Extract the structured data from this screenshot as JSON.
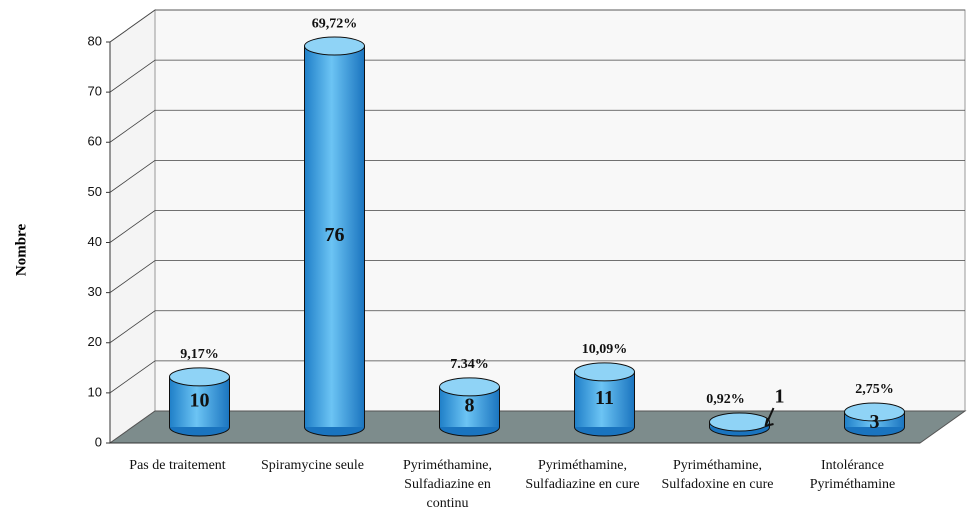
{
  "chart_data": {
    "type": "bar3d",
    "y_label": "Nombre",
    "categories": [
      "Pas de traitement",
      "Spiramycine seule",
      "Pyriméthamine, Sulfadiazine en continu",
      "Pyriméthamine, Sulfadiazine en cure",
      "Pyriméthamine, Sulfadoxine en cure",
      "Intolérance Pyriméthamine"
    ],
    "values": [
      10,
      76,
      8,
      11,
      1,
      3
    ],
    "percent_values": [
      9.17,
      69.72,
      7.34,
      10.09,
      0.92,
      2.75
    ],
    "percent_labels": [
      "9,17%",
      "69,72%",
      "7.34%",
      "10,09%",
      "0,92%",
      "2,75%"
    ],
    "color": "#3a9fe0",
    "ylim": [
      0,
      80
    ],
    "yticks": [
      0,
      10,
      20,
      30,
      40,
      50,
      60,
      70,
      80
    ],
    "grid": true
  }
}
